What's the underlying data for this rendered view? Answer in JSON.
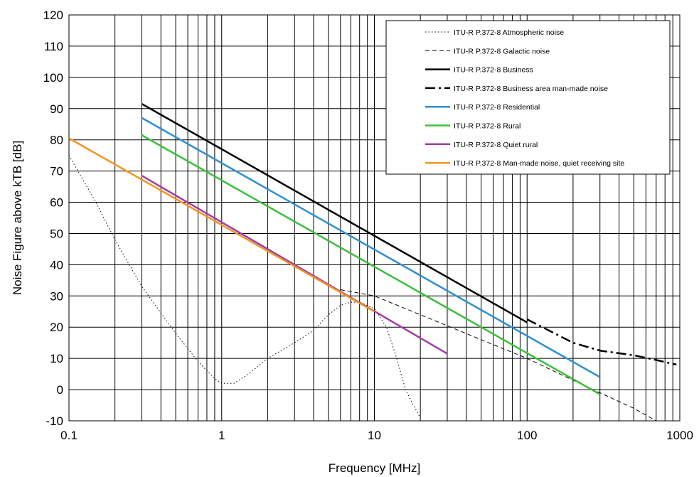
{
  "chart_data": {
    "type": "line",
    "title": "",
    "xlabel": "Frequency [MHz]",
    "ylabel": "Noise Figure above kTB [dB]",
    "x_scale": "log",
    "xlim": [
      0.1,
      1000
    ],
    "ylim": [
      -10,
      120
    ],
    "x_ticks": [
      "0.1",
      "1",
      "10",
      "100",
      "1000"
    ],
    "y_ticks": [
      "-10",
      "0",
      "10",
      "20",
      "30",
      "40",
      "50",
      "60",
      "70",
      "80",
      "90",
      "100",
      "110",
      "120"
    ],
    "grid": true,
    "legend_position": "top-right",
    "series": [
      {
        "name": "ITU-R P.372-8 Atmospheric noise",
        "color": "#000000",
        "style": "dotted",
        "points": [
          [
            0.1,
            75
          ],
          [
            0.15,
            60
          ],
          [
            0.2,
            48
          ],
          [
            0.3,
            33
          ],
          [
            0.5,
            18
          ],
          [
            0.7,
            9
          ],
          [
            0.9,
            3.5
          ],
          [
            1.0,
            2
          ],
          [
            1.2,
            2
          ],
          [
            1.5,
            5
          ],
          [
            2,
            10
          ],
          [
            3,
            15
          ],
          [
            4,
            19
          ],
          [
            5,
            24
          ],
          [
            6,
            27
          ],
          [
            7,
            28
          ],
          [
            8,
            28
          ],
          [
            10,
            26
          ],
          [
            12,
            20
          ],
          [
            14,
            10
          ],
          [
            16,
            0
          ],
          [
            18,
            -5
          ],
          [
            20,
            -9
          ]
        ]
      },
      {
        "name": "ITU-R P.372-8 Galactic noise",
        "color": "#000000",
        "style": "dashed",
        "points": [
          [
            6,
            32
          ],
          [
            10,
            30
          ],
          [
            20,
            24
          ],
          [
            50,
            16
          ],
          [
            100,
            10
          ],
          [
            200,
            3
          ],
          [
            300,
            -1
          ],
          [
            500,
            -6
          ],
          [
            700,
            -10
          ]
        ]
      },
      {
        "name": "ITU-R P.372-8 Business",
        "color": "#000000",
        "style": "solid",
        "points": [
          [
            0.3,
            91.5
          ],
          [
            100,
            21.5
          ]
        ]
      },
      {
        "name": "ITU-R P.372-8 Business area man-made noise",
        "color": "#000000",
        "style": "dashdot",
        "points": [
          [
            100,
            22.5
          ],
          [
            200,
            15
          ],
          [
            300,
            12.5
          ],
          [
            500,
            11
          ],
          [
            700,
            9.5
          ],
          [
            950,
            8
          ]
        ]
      },
      {
        "name": "ITU-R P.372-8 Residential",
        "color": "#2e8fd0",
        "style": "solid",
        "points": [
          [
            0.3,
            87
          ],
          [
            300,
            4
          ]
        ]
      },
      {
        "name": "ITU-R P.372-8 Rural",
        "color": "#3cbf3c",
        "style": "solid",
        "points": [
          [
            0.3,
            81.5
          ],
          [
            300,
            -1.5
          ]
        ]
      },
      {
        "name": "ITU-R P.372-8 Quiet rural",
        "color": "#a03ca8",
        "style": "solid",
        "points": [
          [
            0.3,
            68.5
          ],
          [
            30,
            11.5
          ]
        ]
      },
      {
        "name": "ITU-R P.372-8 Man-made noise, quiet receiving site",
        "color": "#f09520",
        "style": "solid",
        "points": [
          [
            0.1,
            80.5
          ],
          [
            10,
            25
          ]
        ]
      }
    ]
  }
}
